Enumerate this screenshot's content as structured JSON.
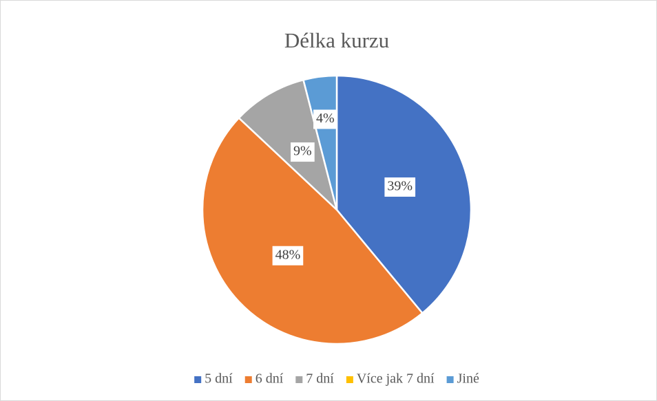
{
  "chart_data": {
    "type": "pie",
    "title": "Délka kurzu",
    "categories": [
      "5 dní",
      "6 dní",
      "7 dní",
      "Více jak 7 dní",
      "Jiné"
    ],
    "values": [
      39,
      48,
      9,
      0,
      4
    ],
    "value_labels": [
      "39%",
      "48%",
      "9%",
      null,
      "4%"
    ],
    "colors": [
      "#4472c4",
      "#ed7d31",
      "#a5a5a5",
      "#ffc000",
      "#5b9bd5"
    ],
    "legend": "bottom"
  }
}
